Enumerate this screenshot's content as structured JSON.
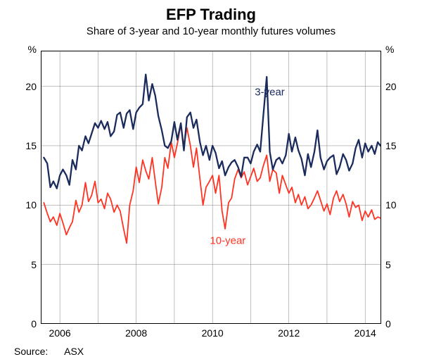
{
  "chart": {
    "title": "EFP Trading",
    "subtitle": "Share of 3-year and 10-year monthly futures volumes",
    "title_fontsize": 22,
    "subtitle_fontsize": 15,
    "type": "line",
    "background_color": "#ffffff",
    "plot_background": "#ffffff",
    "border_color": "#000000",
    "grid_color": "#808080",
    "grid_width": 0.5,
    "y": {
      "unit": "%",
      "min": 0,
      "max": 23,
      "ticks": [
        0,
        5,
        10,
        15,
        20
      ],
      "tick_fontsize": 14
    },
    "x": {
      "min": 2005.5,
      "max": 2014.42,
      "ticks": [
        2006,
        2008,
        2010,
        2012,
        2014
      ],
      "tick_fontsize": 14
    },
    "series": {
      "three_year": {
        "label": "3-year",
        "color": "#1a2b5c",
        "line_width": 2.3,
        "label_pos": {
          "x": 2011.5,
          "y": 19.5
        },
        "data": [
          [
            2005.58,
            14.0
          ],
          [
            2005.67,
            13.5
          ],
          [
            2005.75,
            11.5
          ],
          [
            2005.83,
            12.0
          ],
          [
            2005.92,
            11.4
          ],
          [
            2006.0,
            12.5
          ],
          [
            2006.08,
            13.0
          ],
          [
            2006.17,
            12.5
          ],
          [
            2006.25,
            11.7
          ],
          [
            2006.33,
            13.8
          ],
          [
            2006.42,
            13.0
          ],
          [
            2006.5,
            15.0
          ],
          [
            2006.58,
            14.6
          ],
          [
            2006.67,
            15.8
          ],
          [
            2006.75,
            15.2
          ],
          [
            2006.83,
            16.0
          ],
          [
            2006.92,
            16.9
          ],
          [
            2007.0,
            16.5
          ],
          [
            2007.08,
            17.1
          ],
          [
            2007.17,
            16.4
          ],
          [
            2007.25,
            17.0
          ],
          [
            2007.33,
            15.8
          ],
          [
            2007.42,
            16.2
          ],
          [
            2007.5,
            17.6
          ],
          [
            2007.58,
            17.8
          ],
          [
            2007.67,
            16.5
          ],
          [
            2007.75,
            17.7
          ],
          [
            2007.83,
            18.0
          ],
          [
            2007.92,
            16.4
          ],
          [
            2008.0,
            17.8
          ],
          [
            2008.08,
            18.2
          ],
          [
            2008.17,
            18.5
          ],
          [
            2008.25,
            21.0
          ],
          [
            2008.33,
            18.8
          ],
          [
            2008.42,
            20.2
          ],
          [
            2008.5,
            19.2
          ],
          [
            2008.58,
            17.5
          ],
          [
            2008.67,
            16.3
          ],
          [
            2008.75,
            15.0
          ],
          [
            2008.83,
            14.8
          ],
          [
            2008.92,
            15.4
          ],
          [
            2009.0,
            17.0
          ],
          [
            2009.08,
            15.5
          ],
          [
            2009.17,
            16.9
          ],
          [
            2009.25,
            14.6
          ],
          [
            2009.33,
            17.4
          ],
          [
            2009.42,
            17.8
          ],
          [
            2009.5,
            16.5
          ],
          [
            2009.58,
            17.2
          ],
          [
            2009.67,
            15.3
          ],
          [
            2009.75,
            14.2
          ],
          [
            2009.83,
            15.0
          ],
          [
            2009.92,
            13.8
          ],
          [
            2010.0,
            15.0
          ],
          [
            2010.08,
            14.4
          ],
          [
            2010.17,
            13.1
          ],
          [
            2010.25,
            13.7
          ],
          [
            2010.33,
            12.5
          ],
          [
            2010.42,
            13.2
          ],
          [
            2010.5,
            13.6
          ],
          [
            2010.58,
            13.8
          ],
          [
            2010.67,
            13.2
          ],
          [
            2010.75,
            12.4
          ],
          [
            2010.83,
            14.0
          ],
          [
            2010.92,
            14.0
          ],
          [
            2011.0,
            13.5
          ],
          [
            2011.08,
            14.5
          ],
          [
            2011.17,
            15.1
          ],
          [
            2011.25,
            14.5
          ],
          [
            2011.33,
            17.5
          ],
          [
            2011.42,
            20.8
          ],
          [
            2011.5,
            14.5
          ],
          [
            2011.58,
            13.0
          ],
          [
            2011.67,
            13.8
          ],
          [
            2011.75,
            14.0
          ],
          [
            2011.83,
            13.5
          ],
          [
            2011.92,
            14.2
          ],
          [
            2012.0,
            16.0
          ],
          [
            2012.08,
            14.5
          ],
          [
            2012.17,
            15.7
          ],
          [
            2012.25,
            14.6
          ],
          [
            2012.33,
            13.9
          ],
          [
            2012.42,
            12.5
          ],
          [
            2012.5,
            14.3
          ],
          [
            2012.58,
            13.2
          ],
          [
            2012.67,
            14.5
          ],
          [
            2012.75,
            16.3
          ],
          [
            2012.83,
            14.0
          ],
          [
            2012.92,
            13.0
          ],
          [
            2013.0,
            13.7
          ],
          [
            2013.08,
            14.0
          ],
          [
            2013.17,
            14.2
          ],
          [
            2013.25,
            12.6
          ],
          [
            2013.33,
            13.2
          ],
          [
            2013.42,
            14.3
          ],
          [
            2013.5,
            13.8
          ],
          [
            2013.58,
            12.9
          ],
          [
            2013.67,
            13.5
          ],
          [
            2013.75,
            14.8
          ],
          [
            2013.83,
            15.5
          ],
          [
            2013.92,
            14.0
          ],
          [
            2014.0,
            15.2
          ],
          [
            2014.08,
            14.5
          ],
          [
            2014.17,
            15.0
          ],
          [
            2014.25,
            14.3
          ],
          [
            2014.33,
            15.3
          ],
          [
            2014.4,
            15.0
          ]
        ]
      },
      "ten_year": {
        "label": "10-year",
        "color": "#ff3322",
        "line_width": 1.8,
        "label_pos": {
          "x": 2010.4,
          "y": 7.0
        },
        "data": [
          [
            2005.58,
            10.2
          ],
          [
            2005.67,
            9.3
          ],
          [
            2005.75,
            8.6
          ],
          [
            2005.83,
            9.0
          ],
          [
            2005.92,
            8.3
          ],
          [
            2006.0,
            9.3
          ],
          [
            2006.08,
            8.5
          ],
          [
            2006.17,
            7.5
          ],
          [
            2006.25,
            8.1
          ],
          [
            2006.33,
            8.6
          ],
          [
            2006.42,
            10.4
          ],
          [
            2006.5,
            9.4
          ],
          [
            2006.58,
            10.0
          ],
          [
            2006.67,
            11.9
          ],
          [
            2006.75,
            10.3
          ],
          [
            2006.83,
            10.8
          ],
          [
            2006.92,
            12.0
          ],
          [
            2007.0,
            10.2
          ],
          [
            2007.08,
            10.5
          ],
          [
            2007.17,
            9.7
          ],
          [
            2007.25,
            11.0
          ],
          [
            2007.33,
            10.5
          ],
          [
            2007.42,
            9.4
          ],
          [
            2007.5,
            10.0
          ],
          [
            2007.58,
            9.5
          ],
          [
            2007.67,
            8.0
          ],
          [
            2007.75,
            6.8
          ],
          [
            2007.83,
            10.0
          ],
          [
            2007.92,
            11.2
          ],
          [
            2008.0,
            13.2
          ],
          [
            2008.08,
            11.9
          ],
          [
            2008.17,
            13.8
          ],
          [
            2008.25,
            12.9
          ],
          [
            2008.33,
            12.2
          ],
          [
            2008.42,
            14.0
          ],
          [
            2008.5,
            12.0
          ],
          [
            2008.58,
            10.1
          ],
          [
            2008.67,
            11.5
          ],
          [
            2008.75,
            14.0
          ],
          [
            2008.83,
            13.1
          ],
          [
            2008.92,
            15.3
          ],
          [
            2009.0,
            14.0
          ],
          [
            2009.08,
            15.2
          ],
          [
            2009.17,
            16.8
          ],
          [
            2009.25,
            15.0
          ],
          [
            2009.33,
            16.5
          ],
          [
            2009.42,
            15.0
          ],
          [
            2009.5,
            13.2
          ],
          [
            2009.58,
            14.8
          ],
          [
            2009.67,
            12.2
          ],
          [
            2009.75,
            10.0
          ],
          [
            2009.83,
            11.5
          ],
          [
            2009.92,
            12.0
          ],
          [
            2010.0,
            12.5
          ],
          [
            2010.08,
            11.0
          ],
          [
            2010.17,
            12.5
          ],
          [
            2010.25,
            9.5
          ],
          [
            2010.33,
            8.0
          ],
          [
            2010.42,
            10.2
          ],
          [
            2010.5,
            10.6
          ],
          [
            2010.58,
            12.2
          ],
          [
            2010.67,
            13.0
          ],
          [
            2010.75,
            12.3
          ],
          [
            2010.83,
            12.8
          ],
          [
            2010.92,
            11.7
          ],
          [
            2011.0,
            12.4
          ],
          [
            2011.08,
            13.1
          ],
          [
            2011.17,
            12.0
          ],
          [
            2011.25,
            12.3
          ],
          [
            2011.33,
            13.3
          ],
          [
            2011.42,
            14.2
          ],
          [
            2011.5,
            12.0
          ],
          [
            2011.58,
            13.0
          ],
          [
            2011.67,
            12.7
          ],
          [
            2011.75,
            11.0
          ],
          [
            2011.83,
            12.5
          ],
          [
            2011.92,
            11.7
          ],
          [
            2012.0,
            11.0
          ],
          [
            2012.08,
            11.5
          ],
          [
            2012.17,
            10.2
          ],
          [
            2012.25,
            10.9
          ],
          [
            2012.33,
            10.0
          ],
          [
            2012.42,
            10.7
          ],
          [
            2012.5,
            9.7
          ],
          [
            2012.58,
            10.0
          ],
          [
            2012.67,
            10.6
          ],
          [
            2012.75,
            11.2
          ],
          [
            2012.83,
            10.4
          ],
          [
            2012.92,
            9.5
          ],
          [
            2013.0,
            10.1
          ],
          [
            2013.08,
            9.2
          ],
          [
            2013.17,
            10.6
          ],
          [
            2013.25,
            11.2
          ],
          [
            2013.33,
            10.3
          ],
          [
            2013.42,
            10.9
          ],
          [
            2013.5,
            10.1
          ],
          [
            2013.58,
            9.0
          ],
          [
            2013.67,
            10.3
          ],
          [
            2013.75,
            9.8
          ],
          [
            2013.83,
            10.0
          ],
          [
            2013.92,
            8.7
          ],
          [
            2014.0,
            9.5
          ],
          [
            2014.08,
            9.0
          ],
          [
            2014.17,
            9.6
          ],
          [
            2014.25,
            8.8
          ],
          [
            2014.33,
            9.0
          ],
          [
            2014.4,
            8.9
          ]
        ]
      }
    },
    "source_label": "Source:",
    "source_value": "ASX"
  }
}
